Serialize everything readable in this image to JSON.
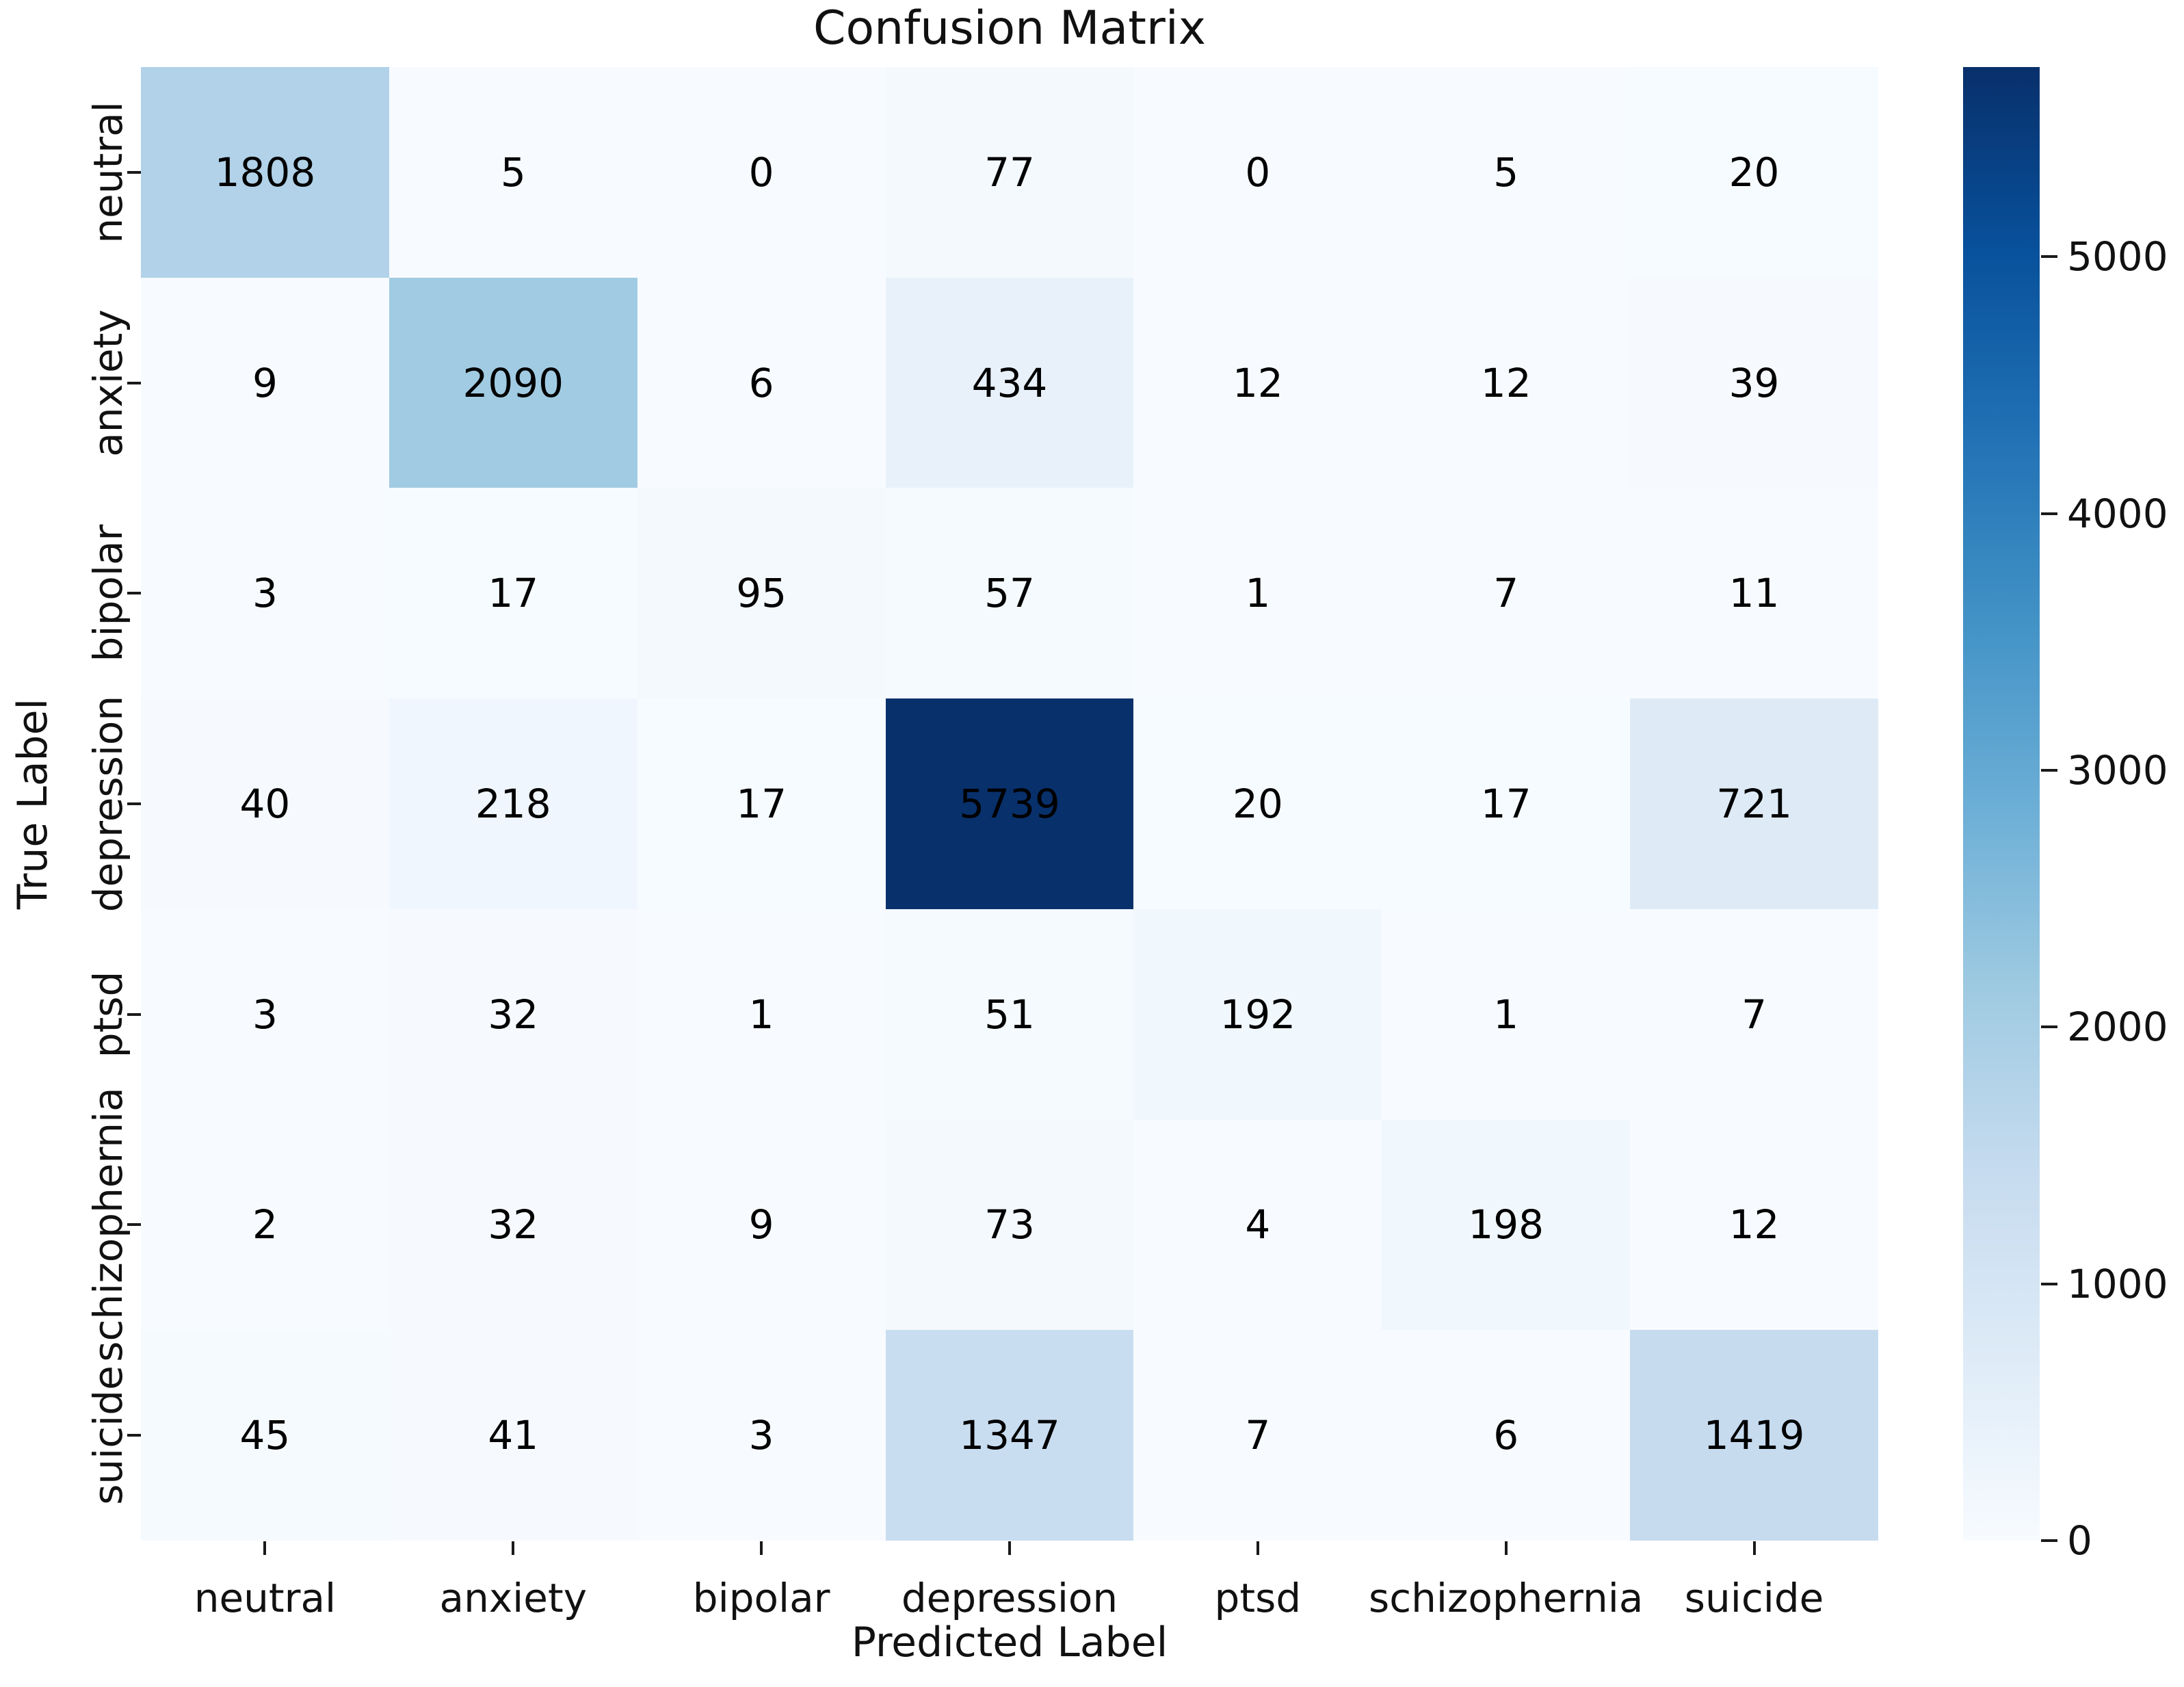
{
  "title": "Confusion Matrix",
  "axes": {
    "x_label": "Predicted Label",
    "y_label": "True Label"
  },
  "chart_data": {
    "type": "heatmap",
    "title": "Confusion Matrix",
    "xlabel": "Predicted Label",
    "ylabel": "True Label",
    "x_categories": [
      "neutral",
      "anxiety",
      "bipolar",
      "depression",
      "ptsd",
      "schizophernia",
      "suicide"
    ],
    "y_categories": [
      "neutral",
      "anxiety",
      "bipolar",
      "depression",
      "ptsd",
      "schizophernia",
      "suicide"
    ],
    "matrix": [
      [
        1808,
        5,
        0,
        77,
        0,
        5,
        20
      ],
      [
        9,
        2090,
        6,
        434,
        12,
        12,
        39
      ],
      [
        3,
        17,
        95,
        57,
        1,
        7,
        11
      ],
      [
        40,
        218,
        17,
        5739,
        20,
        17,
        721
      ],
      [
        3,
        32,
        1,
        51,
        192,
        1,
        7
      ],
      [
        2,
        32,
        9,
        73,
        4,
        198,
        12
      ],
      [
        45,
        41,
        3,
        1347,
        7,
        6,
        1419
      ]
    ],
    "vmin": 0,
    "vmax": 5739,
    "colormap_name": "Blues",
    "colormap_stops": [
      "#f7fbff",
      "#deebf7",
      "#c6dbef",
      "#9ecae1",
      "#6baed6",
      "#4292c6",
      "#2171b5",
      "#08519c",
      "#08306b"
    ],
    "annotation_color": "#000000",
    "colorbar_ticks": [
      0,
      1000,
      2000,
      3000,
      4000,
      5000
    ],
    "colorbar_position": "right",
    "grid": false
  }
}
